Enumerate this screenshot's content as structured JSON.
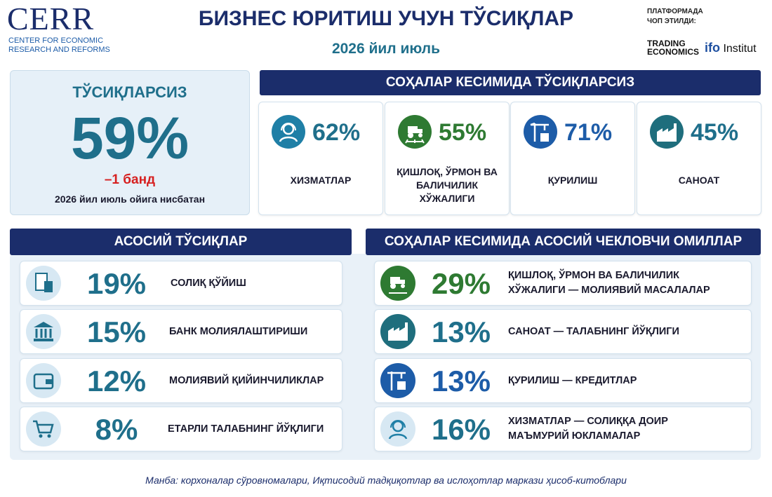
{
  "header": {
    "logo": "CERR",
    "logo_sub_1": "CENTER FOR ECONOMIC",
    "logo_sub_2": "RESEARCH AND REFORMS",
    "title": "БИЗНЕС ЮРИТИШ УЧУН ТЎСИҚЛАР",
    "subtitle": "2026 йил июль",
    "published_1": "ПЛАТФОРМАДА",
    "published_2": "ЧОП ЭТИЛДИ:",
    "partner_1_line_1": "TRADING",
    "partner_1_line_2": "ECONOMICS",
    "partner_2_mark": "ifo",
    "partner_2_name": "Institut"
  },
  "summary": {
    "label": "ТЎСИҚЛАРСИЗ",
    "value": "59%",
    "change": "–1 банд",
    "note": "2026 йил июль ойига нисбатан"
  },
  "sectors": {
    "title": "СОҲАЛАР КЕСИМИДА ТЎСИҚЛАРСИЗ",
    "items": [
      {
        "value": "62%",
        "label": "ХИЗМАТЛАР"
      },
      {
        "value": "55%",
        "label": "ҚИШЛОҚ, ЎРМОН ВА БАЛИЧИЛИК ХЎЖАЛИГИ"
      },
      {
        "value": "71%",
        "label": "ҚУРИЛИШ"
      },
      {
        "value": "45%",
        "label": "САНОАТ"
      }
    ]
  },
  "obstacles": {
    "title": "АСОСИЙ ТЎСИҚЛАР",
    "items": [
      {
        "value": "19%",
        "label": "СОЛИҚ ҚЎЙИШ"
      },
      {
        "value": "15%",
        "label": "БАНК МОЛИЯЛАШТИРИШИ"
      },
      {
        "value": "12%",
        "label": "МОЛИЯВИЙ ҚИЙИНЧИЛИКЛАР"
      },
      {
        "value": "8%",
        "label": "ЕТАРЛИ ТАЛАБНИНГ ЙЎҚЛИГИ"
      }
    ]
  },
  "sector_constraints": {
    "title": "СОҲАЛАР КЕСИМИДА АСОСИЙ ЧЕКЛОВЧИ ОМИЛЛАР",
    "items": [
      {
        "value": "29%",
        "label": "ҚИШЛОҚ, ЎРМОН ВА БАЛИЧИЛИК ХЎЖАЛИГИ — МОЛИЯВИЙ МАСАЛАЛАР"
      },
      {
        "value": "13%",
        "label": "САНОАТ — ТАЛАБНИНГ ЙЎҚЛИГИ"
      },
      {
        "value": "13%",
        "label": "ҚУРИЛИШ — КРЕДИТЛАР"
      },
      {
        "value": "16%",
        "label": "ХИЗМАТЛАР — СОЛИҚҚА ДОИР МАЪМУРИЙ ЮКЛАМАЛАР"
      }
    ]
  },
  "source": "Манба: корхоналар сўровномалари, Иқтисодий тадқиқотлар ва ислоҳотлар маркази ҳисоб-китоблари"
}
